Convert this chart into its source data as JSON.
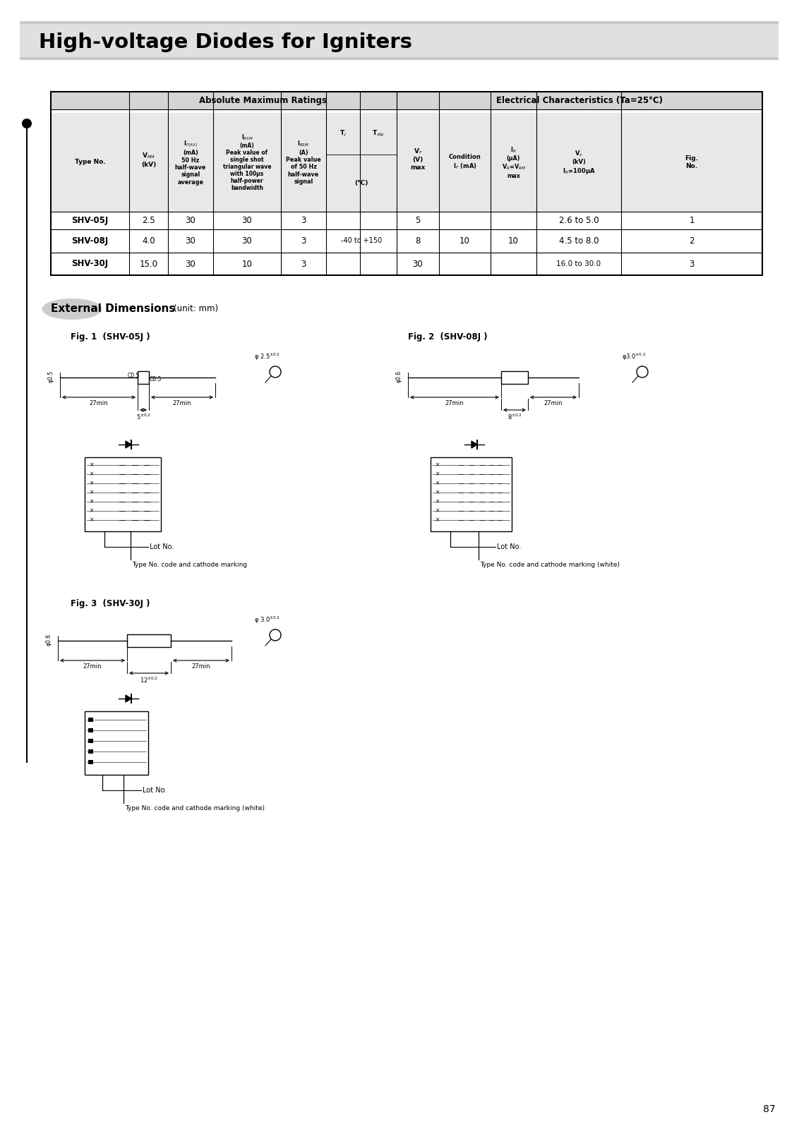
{
  "title": "High-voltage Diodes for Igniters",
  "page_number": "87",
  "bg_color": "#ffffff",
  "ext_dim_title": "External Dimensions",
  "ext_dim_unit": "(unit: mm)",
  "fig1_title": "Fig. 1  (SHV-05J )",
  "fig2_title": "Fig. 2  (SHV-08J )",
  "fig3_title": "Fig. 3  (SHV-30J )"
}
